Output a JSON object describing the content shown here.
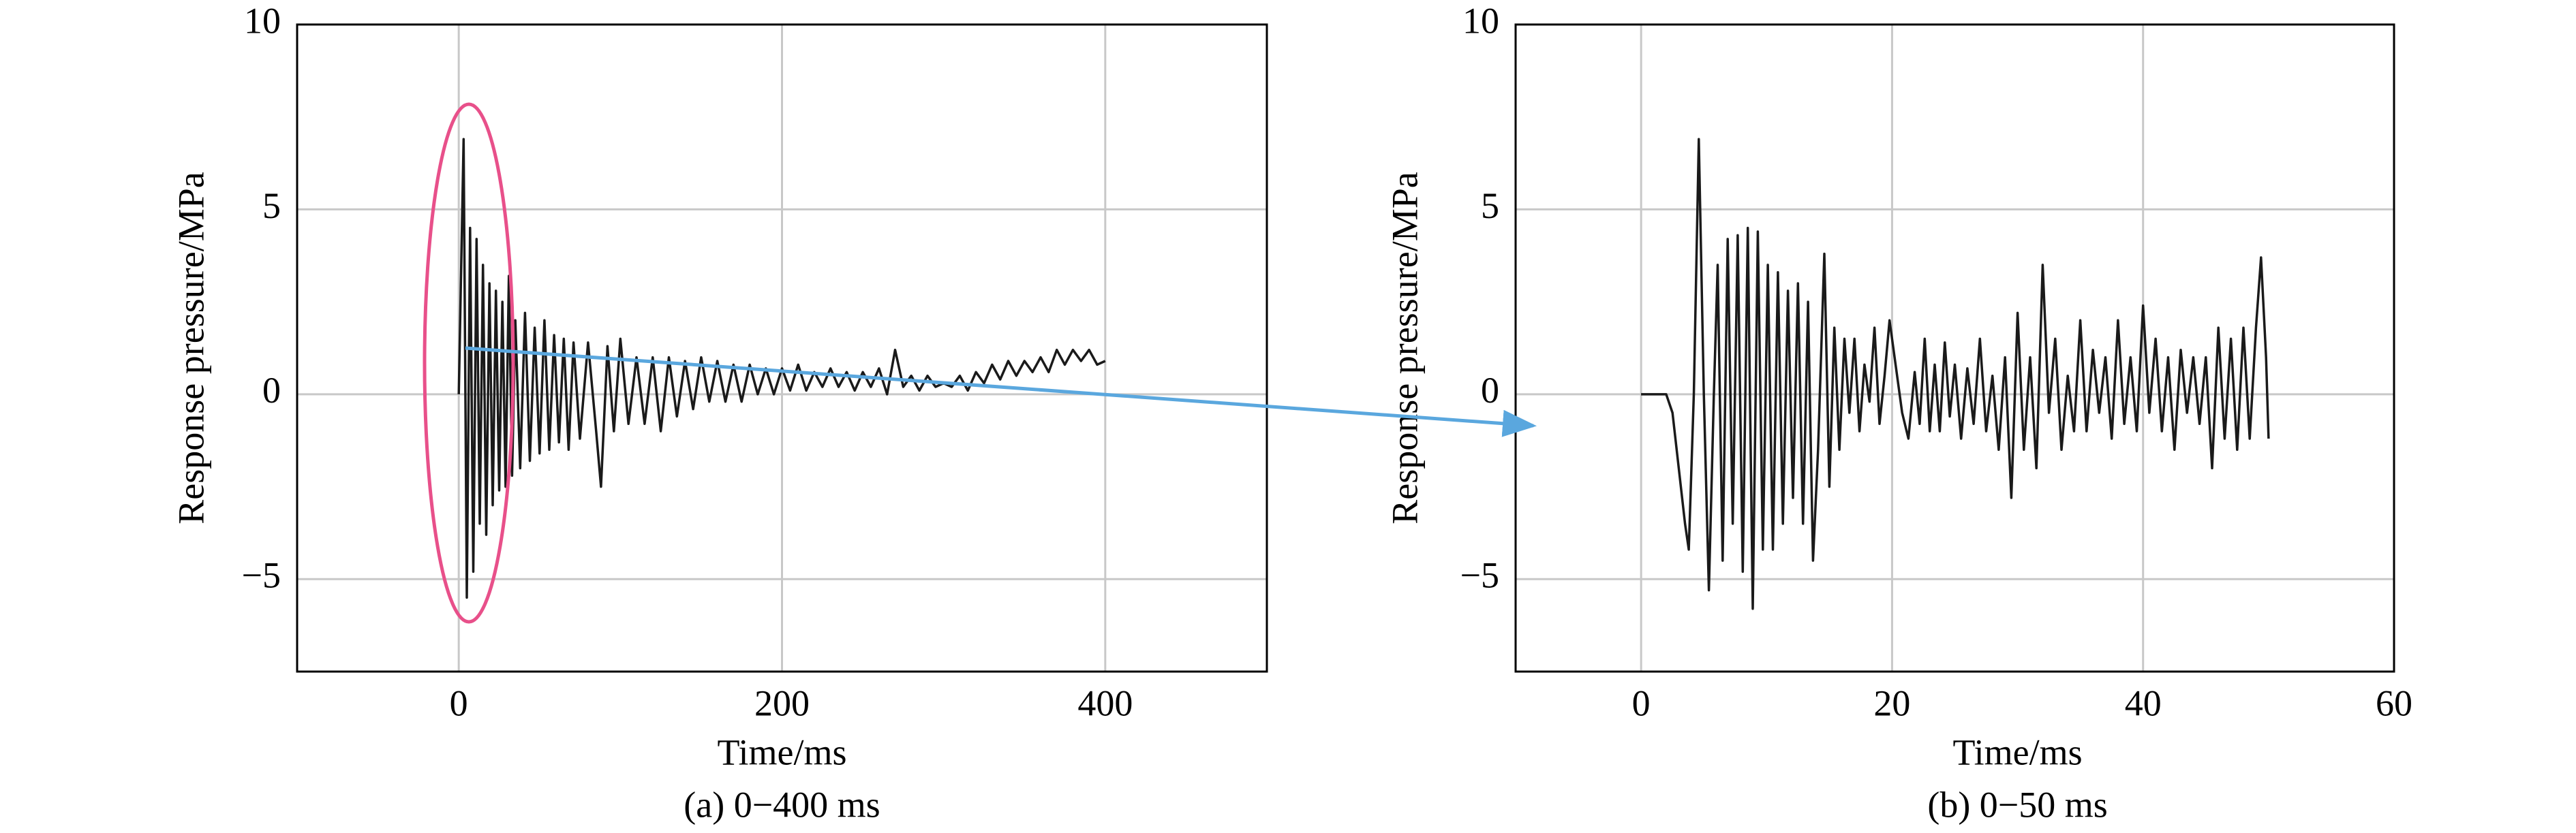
{
  "chart_data": [
    {
      "type": "line",
      "xlabel": "Time/ms",
      "ylabel": "Response pressure/MPa",
      "caption": "(a) 0−400 ms",
      "color": "#1a1a1a",
      "grid": true,
      "xlim": [
        -100,
        500
      ],
      "ylim": [
        -7.5,
        10
      ],
      "xticks": [
        0,
        200,
        400
      ],
      "yticks": [
        {
          "value": -5,
          "label": "−5"
        },
        0,
        5,
        10
      ],
      "x": [
        0,
        3,
        5,
        7,
        9,
        11,
        13,
        15,
        17,
        19,
        21,
        23,
        25,
        27,
        29,
        31,
        33,
        35,
        38,
        41,
        44,
        47,
        50,
        53,
        56,
        59,
        62,
        65,
        68,
        71,
        75,
        80,
        85,
        88,
        92,
        96,
        100,
        105,
        110,
        115,
        120,
        125,
        130,
        135,
        140,
        145,
        150,
        155,
        160,
        165,
        170,
        175,
        180,
        185,
        190,
        195,
        200,
        205,
        210,
        215,
        220,
        225,
        230,
        235,
        240,
        245,
        250,
        255,
        260,
        265,
        270,
        275,
        280,
        285,
        290,
        295,
        300,
        305,
        310,
        315,
        320,
        325,
        330,
        335,
        340,
        345,
        350,
        355,
        360,
        365,
        370,
        375,
        380,
        385,
        390,
        395,
        400
      ],
      "values": [
        0,
        6.9,
        -5.5,
        4.5,
        -4.8,
        4.2,
        -3.5,
        3.5,
        -3.8,
        3.0,
        -3.0,
        2.8,
        -2.6,
        2.5,
        -2.5,
        3.2,
        -2.2,
        2.0,
        -2.0,
        2.2,
        -1.8,
        1.8,
        -1.6,
        2.0,
        -1.5,
        1.6,
        -1.3,
        1.5,
        -1.5,
        1.4,
        -1.2,
        1.4,
        -1.0,
        -2.5,
        1.3,
        -1.0,
        1.5,
        -0.8,
        1.0,
        -0.8,
        1.0,
        -1.0,
        1.0,
        -0.6,
        0.9,
        -0.4,
        1.0,
        -0.2,
        0.9,
        -0.2,
        0.8,
        -0.2,
        0.8,
        0.0,
        0.7,
        0.0,
        0.7,
        0.1,
        0.8,
        0.1,
        0.6,
        0.2,
        0.7,
        0.2,
        0.6,
        0.1,
        0.6,
        0.2,
        0.7,
        0.0,
        1.2,
        0.2,
        0.5,
        0.1,
        0.5,
        0.2,
        0.3,
        0.2,
        0.5,
        0.1,
        0.6,
        0.3,
        0.8,
        0.4,
        0.9,
        0.5,
        0.9,
        0.6,
        1.0,
        0.6,
        1.2,
        0.8,
        1.2,
        0.9,
        1.2,
        0.8,
        0.9
      ]
    },
    {
      "type": "line",
      "xlabel": "Time/ms",
      "ylabel": "Response pressure/MPa",
      "caption": "(b) 0−50 ms",
      "color": "#1a1a1a",
      "grid": true,
      "xlim": [
        -10,
        60
      ],
      "ylim": [
        -7.5,
        10
      ],
      "xticks": [
        0,
        20,
        40,
        60
      ],
      "yticks": [
        {
          "value": -5,
          "label": "−5"
        },
        0,
        5,
        10
      ],
      "x": [
        0,
        2,
        2.5,
        3,
        3.5,
        3.8,
        4.2,
        4.6,
        5.0,
        5.4,
        5.8,
        6.1,
        6.5,
        6.9,
        7.3,
        7.7,
        8.1,
        8.5,
        8.9,
        9.3,
        9.7,
        10.1,
        10.5,
        10.9,
        11.3,
        11.7,
        12.1,
        12.5,
        12.9,
        13.3,
        13.7,
        14.1,
        14.6,
        15.0,
        15.4,
        15.8,
        16.2,
        16.6,
        17.0,
        17.4,
        17.8,
        18.2,
        18.6,
        19.0,
        19.4,
        19.8,
        20.2,
        20.8,
        21.3,
        21.8,
        22.2,
        22.6,
        23.0,
        23.4,
        23.8,
        24.2,
        24.6,
        25.0,
        25.5,
        26.0,
        26.5,
        27.0,
        27.5,
        28.0,
        28.5,
        29.0,
        29.5,
        30.0,
        30.5,
        31.0,
        31.5,
        32.0,
        32.5,
        33.0,
        33.5,
        34.0,
        34.5,
        35.0,
        35.5,
        36.0,
        36.5,
        37.0,
        37.5,
        38.0,
        38.5,
        39.0,
        39.5,
        40.0,
        40.5,
        41.0,
        41.5,
        42.0,
        42.5,
        43.0,
        43.5,
        44.0,
        44.5,
        45.0,
        45.5,
        46.0,
        46.5,
        47.0,
        47.5,
        48.0,
        48.5,
        49.0,
        49.4,
        49.8,
        50.0
      ],
      "values": [
        0,
        0,
        -0.5,
        -2,
        -3.5,
        -4.2,
        0,
        6.9,
        0,
        -5.3,
        0,
        3.5,
        -4.5,
        4.2,
        -3.5,
        4.3,
        -4.8,
        4.5,
        -5.8,
        4.4,
        -4.2,
        3.5,
        -4.2,
        3.3,
        -3.5,
        2.8,
        -2.8,
        3.0,
        -3.5,
        2.5,
        -4.5,
        -1.5,
        3.8,
        -2.5,
        1.8,
        -1.5,
        1.5,
        -0.5,
        1.5,
        -1.0,
        0.8,
        -0.2,
        1.8,
        -0.8,
        0.5,
        2.0,
        1.0,
        -0.5,
        -1.2,
        0.6,
        -0.8,
        1.5,
        -1.0,
        0.8,
        -1.0,
        1.4,
        -0.6,
        0.8,
        -1.2,
        0.7,
        -0.8,
        1.5,
        -1.0,
        0.5,
        -1.5,
        1.0,
        -2.8,
        2.2,
        -1.5,
        1.0,
        -2.0,
        3.5,
        -0.5,
        1.5,
        -1.5,
        0.5,
        -1.0,
        2.0,
        -1.0,
        1.2,
        -0.5,
        1.0,
        -1.2,
        2.0,
        -0.8,
        1.0,
        -1.0,
        2.4,
        -0.5,
        1.5,
        -1.0,
        1.0,
        -1.5,
        1.2,
        -0.5,
        1.0,
        -0.8,
        1.0,
        -2.0,
        1.8,
        -1.2,
        1.5,
        -1.5,
        1.8,
        -1.2,
        1.8,
        3.7,
        1.0,
        -1.2
      ]
    }
  ]
}
